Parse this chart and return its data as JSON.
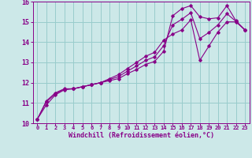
{
  "xlabel": "Windchill (Refroidissement éolien,°C)",
  "xlim": [
    -0.5,
    23.5
  ],
  "ylim": [
    10,
    16
  ],
  "yticks": [
    10,
    11,
    12,
    13,
    14,
    15,
    16
  ],
  "xticks": [
    0,
    1,
    2,
    3,
    4,
    5,
    6,
    7,
    8,
    9,
    10,
    11,
    12,
    13,
    14,
    15,
    16,
    17,
    18,
    19,
    20,
    21,
    22,
    23
  ],
  "background_color": "#cce8e8",
  "grid_color": "#99cccc",
  "line_color": "#880088",
  "series": [
    [
      10.2,
      11.1,
      11.5,
      11.7,
      11.7,
      11.8,
      11.9,
      12.0,
      12.1,
      12.2,
      12.45,
      12.65,
      12.9,
      13.05,
      13.55,
      15.3,
      15.65,
      15.8,
      15.25,
      15.15,
      15.2,
      15.8,
      15.05,
      14.6
    ],
    [
      10.2,
      10.9,
      11.4,
      11.65,
      11.7,
      11.8,
      11.9,
      12.0,
      12.2,
      12.4,
      12.7,
      13.0,
      13.3,
      13.5,
      14.1,
      14.4,
      14.6,
      15.1,
      13.1,
      13.8,
      14.5,
      15.0,
      15.0,
      14.6
    ],
    [
      10.2,
      11.05,
      11.45,
      11.68,
      11.7,
      11.8,
      11.9,
      12.0,
      12.15,
      12.3,
      12.575,
      12.825,
      13.1,
      13.275,
      13.825,
      14.85,
      15.125,
      15.45,
      14.175,
      14.475,
      14.85,
      15.4,
      15.025,
      14.6
    ]
  ]
}
